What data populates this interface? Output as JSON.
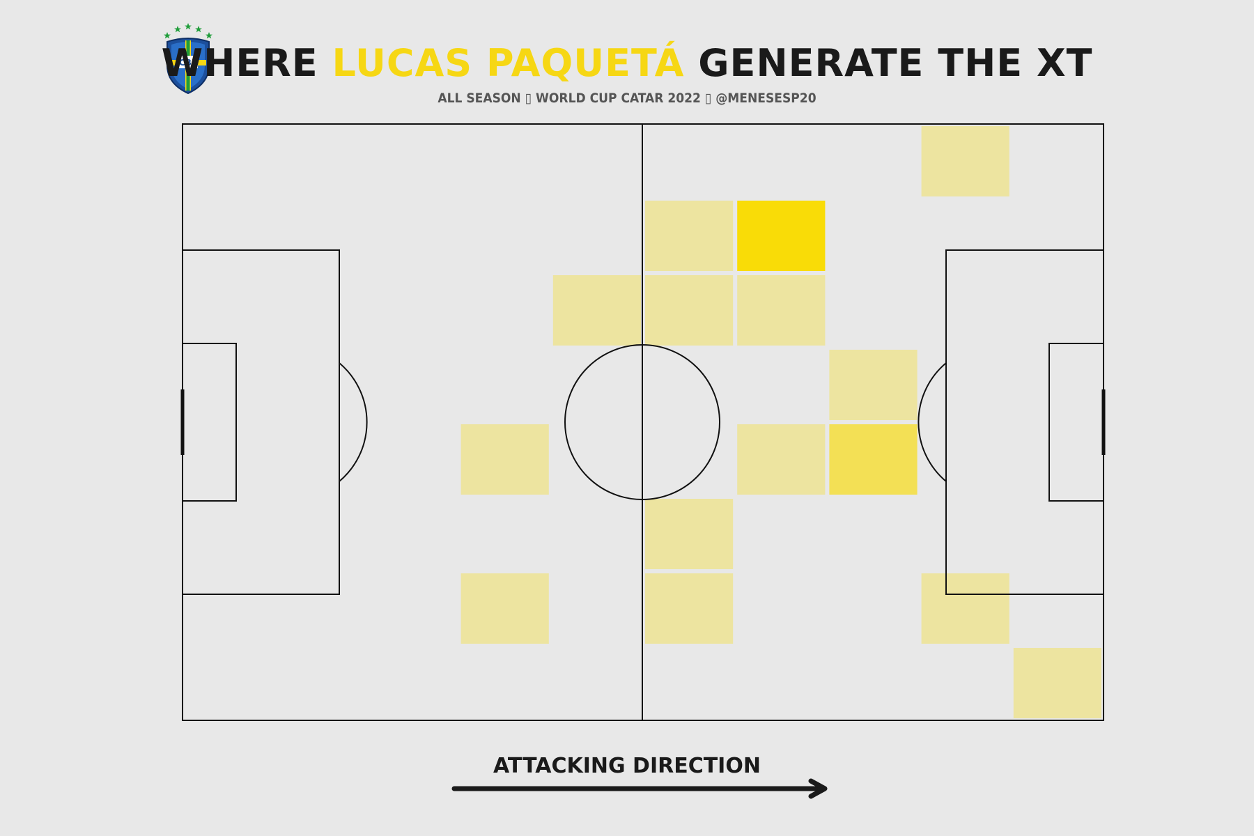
{
  "header": {
    "title_prefix": "WHERE ",
    "title_highlight": "LUCAS PAQUETÁ",
    "title_suffix": " GENERATE THE XT",
    "subtitle": "ALL SEASON ▯ WORLD CUP CATAR 2022 ▯ @MENESESP20",
    "logo_text": "CBF"
  },
  "footer": {
    "attacking_direction": "ATTACKING DIRECTION"
  },
  "colors": {
    "background": "#e8e8e8",
    "highlight": "#f6d714",
    "heat_low": "#ede4a0",
    "heat_mid": "#f3e055",
    "heat_high": "#f9dc07",
    "line": "#111111"
  },
  "chart_data": {
    "type": "heatmap",
    "title": "WHERE LUCAS PAQUETÁ GENERATE THE XT",
    "grid": {
      "cols": 10,
      "rows": 8
    },
    "x_bins_note": "pitch length split into 10 bins, col 0 = own goal side, attacking left to right",
    "cells": [
      {
        "col": 8,
        "row": 0,
        "level": 1
      },
      {
        "col": 5,
        "row": 1,
        "level": 1
      },
      {
        "col": 6,
        "row": 1,
        "level": 3
      },
      {
        "col": 4,
        "row": 2,
        "level": 1
      },
      {
        "col": 5,
        "row": 2,
        "level": 1
      },
      {
        "col": 6,
        "row": 2,
        "level": 1
      },
      {
        "col": 7,
        "row": 3,
        "level": 1
      },
      {
        "col": 3,
        "row": 4,
        "level": 1
      },
      {
        "col": 6,
        "row": 4,
        "level": 1
      },
      {
        "col": 7,
        "row": 4,
        "level": 2
      },
      {
        "col": 5,
        "row": 5,
        "level": 1
      },
      {
        "col": 3,
        "row": 6,
        "level": 1
      },
      {
        "col": 5,
        "row": 6,
        "level": 1
      },
      {
        "col": 8,
        "row": 6,
        "level": 1
      },
      {
        "col": 9,
        "row": 7,
        "level": 1
      }
    ],
    "level_scale": "1 = low, 2 = medium, 3 = high",
    "legend": "none",
    "grid_lines": false
  }
}
